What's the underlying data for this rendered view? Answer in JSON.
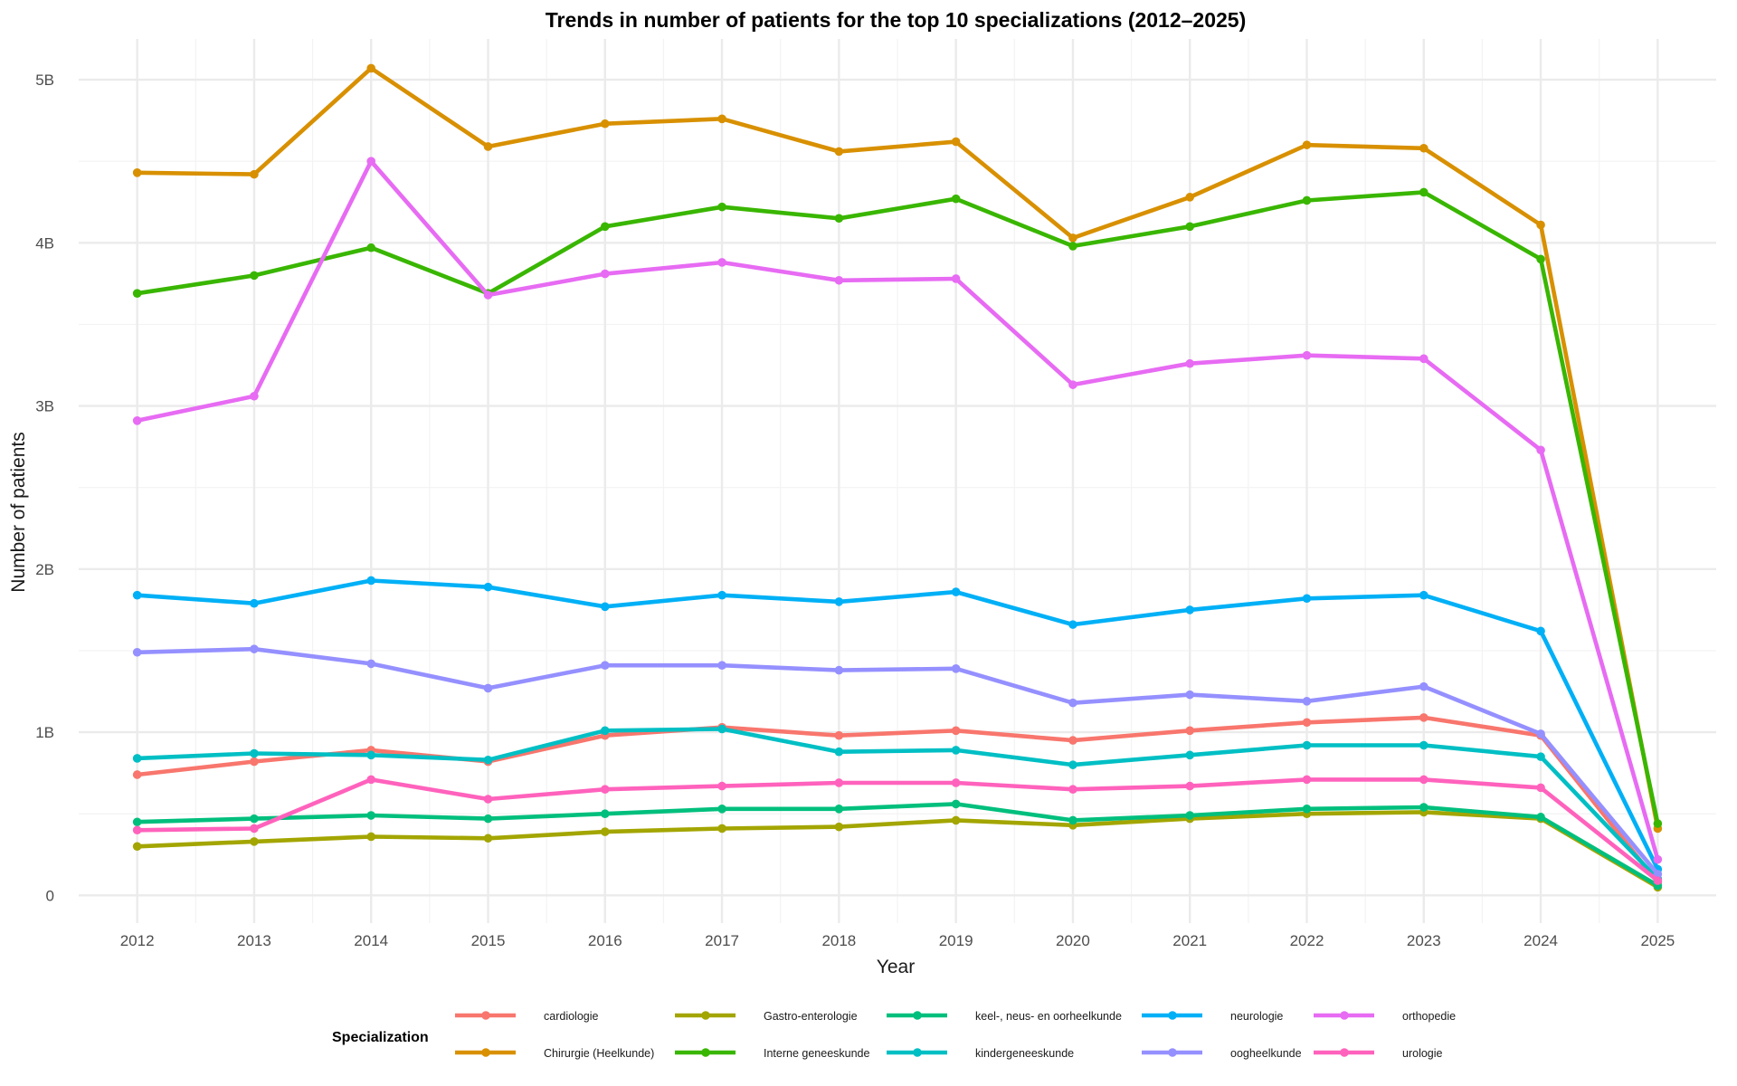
{
  "chart_data": {
    "type": "line",
    "title": "Trends in number of patients for the top 10 specializations (2012–2025)",
    "xlabel": "Year",
    "ylabel": "Number of patients",
    "x": [
      2012,
      2013,
      2014,
      2015,
      2016,
      2017,
      2018,
      2019,
      2020,
      2021,
      2022,
      2023,
      2024,
      2025
    ],
    "xlim": [
      2011.5,
      2025.5
    ],
    "ylim": [
      -170000000,
      5250000000
    ],
    "y_ticks": [
      0,
      1000000000,
      2000000000,
      3000000000,
      4000000000,
      5000000000
    ],
    "y_tick_labels": [
      "0",
      "1B",
      "2B",
      "3B",
      "4B",
      "5B"
    ],
    "x_tick_labels": [
      "2012",
      "2013",
      "2014",
      "2015",
      "2016",
      "2017",
      "2018",
      "2019",
      "2020",
      "2021",
      "2022",
      "2023",
      "2024",
      "2025"
    ],
    "grid": true,
    "legend_title": "Specialization",
    "legend_position": "bottom",
    "series": [
      {
        "name": "cardiologie",
        "color": "#F8766D",
        "values": [
          740000000,
          820000000,
          890000000,
          820000000,
          980000000,
          1030000000,
          980000000,
          1010000000,
          950000000,
          1010000000,
          1060000000,
          1090000000,
          980000000,
          80000000
        ]
      },
      {
        "name": "Chirurgie (Heelkunde)",
        "color": "#D89000",
        "values": [
          4430000000,
          4420000000,
          5070000000,
          4590000000,
          4730000000,
          4760000000,
          4560000000,
          4620000000,
          4030000000,
          4280000000,
          4600000000,
          4580000000,
          4110000000,
          410000000
        ]
      },
      {
        "name": "Gastro-enterologie",
        "color": "#A3A500",
        "values": [
          300000000,
          330000000,
          360000000,
          350000000,
          390000000,
          410000000,
          420000000,
          460000000,
          430000000,
          470000000,
          500000000,
          510000000,
          470000000,
          50000000
        ]
      },
      {
        "name": "Interne geneeskunde",
        "color": "#39B600",
        "values": [
          3690000000,
          3800000000,
          3970000000,
          3690000000,
          4100000000,
          4220000000,
          4150000000,
          4270000000,
          3980000000,
          4100000000,
          4260000000,
          4310000000,
          3900000000,
          440000000
        ]
      },
      {
        "name": "keel-, neus- en oorheelkunde",
        "color": "#00BF7D",
        "values": [
          450000000,
          470000000,
          490000000,
          470000000,
          500000000,
          530000000,
          530000000,
          560000000,
          460000000,
          490000000,
          530000000,
          540000000,
          480000000,
          60000000
        ]
      },
      {
        "name": "kindergeneeskunde",
        "color": "#00BFC4",
        "values": [
          840000000,
          870000000,
          860000000,
          830000000,
          1010000000,
          1020000000,
          880000000,
          890000000,
          800000000,
          860000000,
          920000000,
          920000000,
          850000000,
          100000000
        ]
      },
      {
        "name": "neurologie",
        "color": "#00B0F6",
        "values": [
          1840000000,
          1790000000,
          1930000000,
          1890000000,
          1770000000,
          1840000000,
          1800000000,
          1860000000,
          1660000000,
          1750000000,
          1820000000,
          1840000000,
          1620000000,
          160000000
        ]
      },
      {
        "name": "oogheelkunde",
        "color": "#9590FF",
        "values": [
          1490000000,
          1510000000,
          1420000000,
          1270000000,
          1410000000,
          1410000000,
          1380000000,
          1390000000,
          1180000000,
          1230000000,
          1190000000,
          1280000000,
          990000000,
          130000000
        ]
      },
      {
        "name": "orthopedie",
        "color": "#E76BF3",
        "values": [
          2910000000,
          3060000000,
          4500000000,
          3680000000,
          3810000000,
          3880000000,
          3770000000,
          3780000000,
          3130000000,
          3260000000,
          3310000000,
          3290000000,
          2730000000,
          220000000
        ]
      },
      {
        "name": "urologie",
        "color": "#FF62BC",
        "values": [
          400000000,
          410000000,
          710000000,
          590000000,
          650000000,
          670000000,
          690000000,
          690000000,
          650000000,
          670000000,
          710000000,
          710000000,
          660000000,
          90000000
        ]
      }
    ]
  }
}
